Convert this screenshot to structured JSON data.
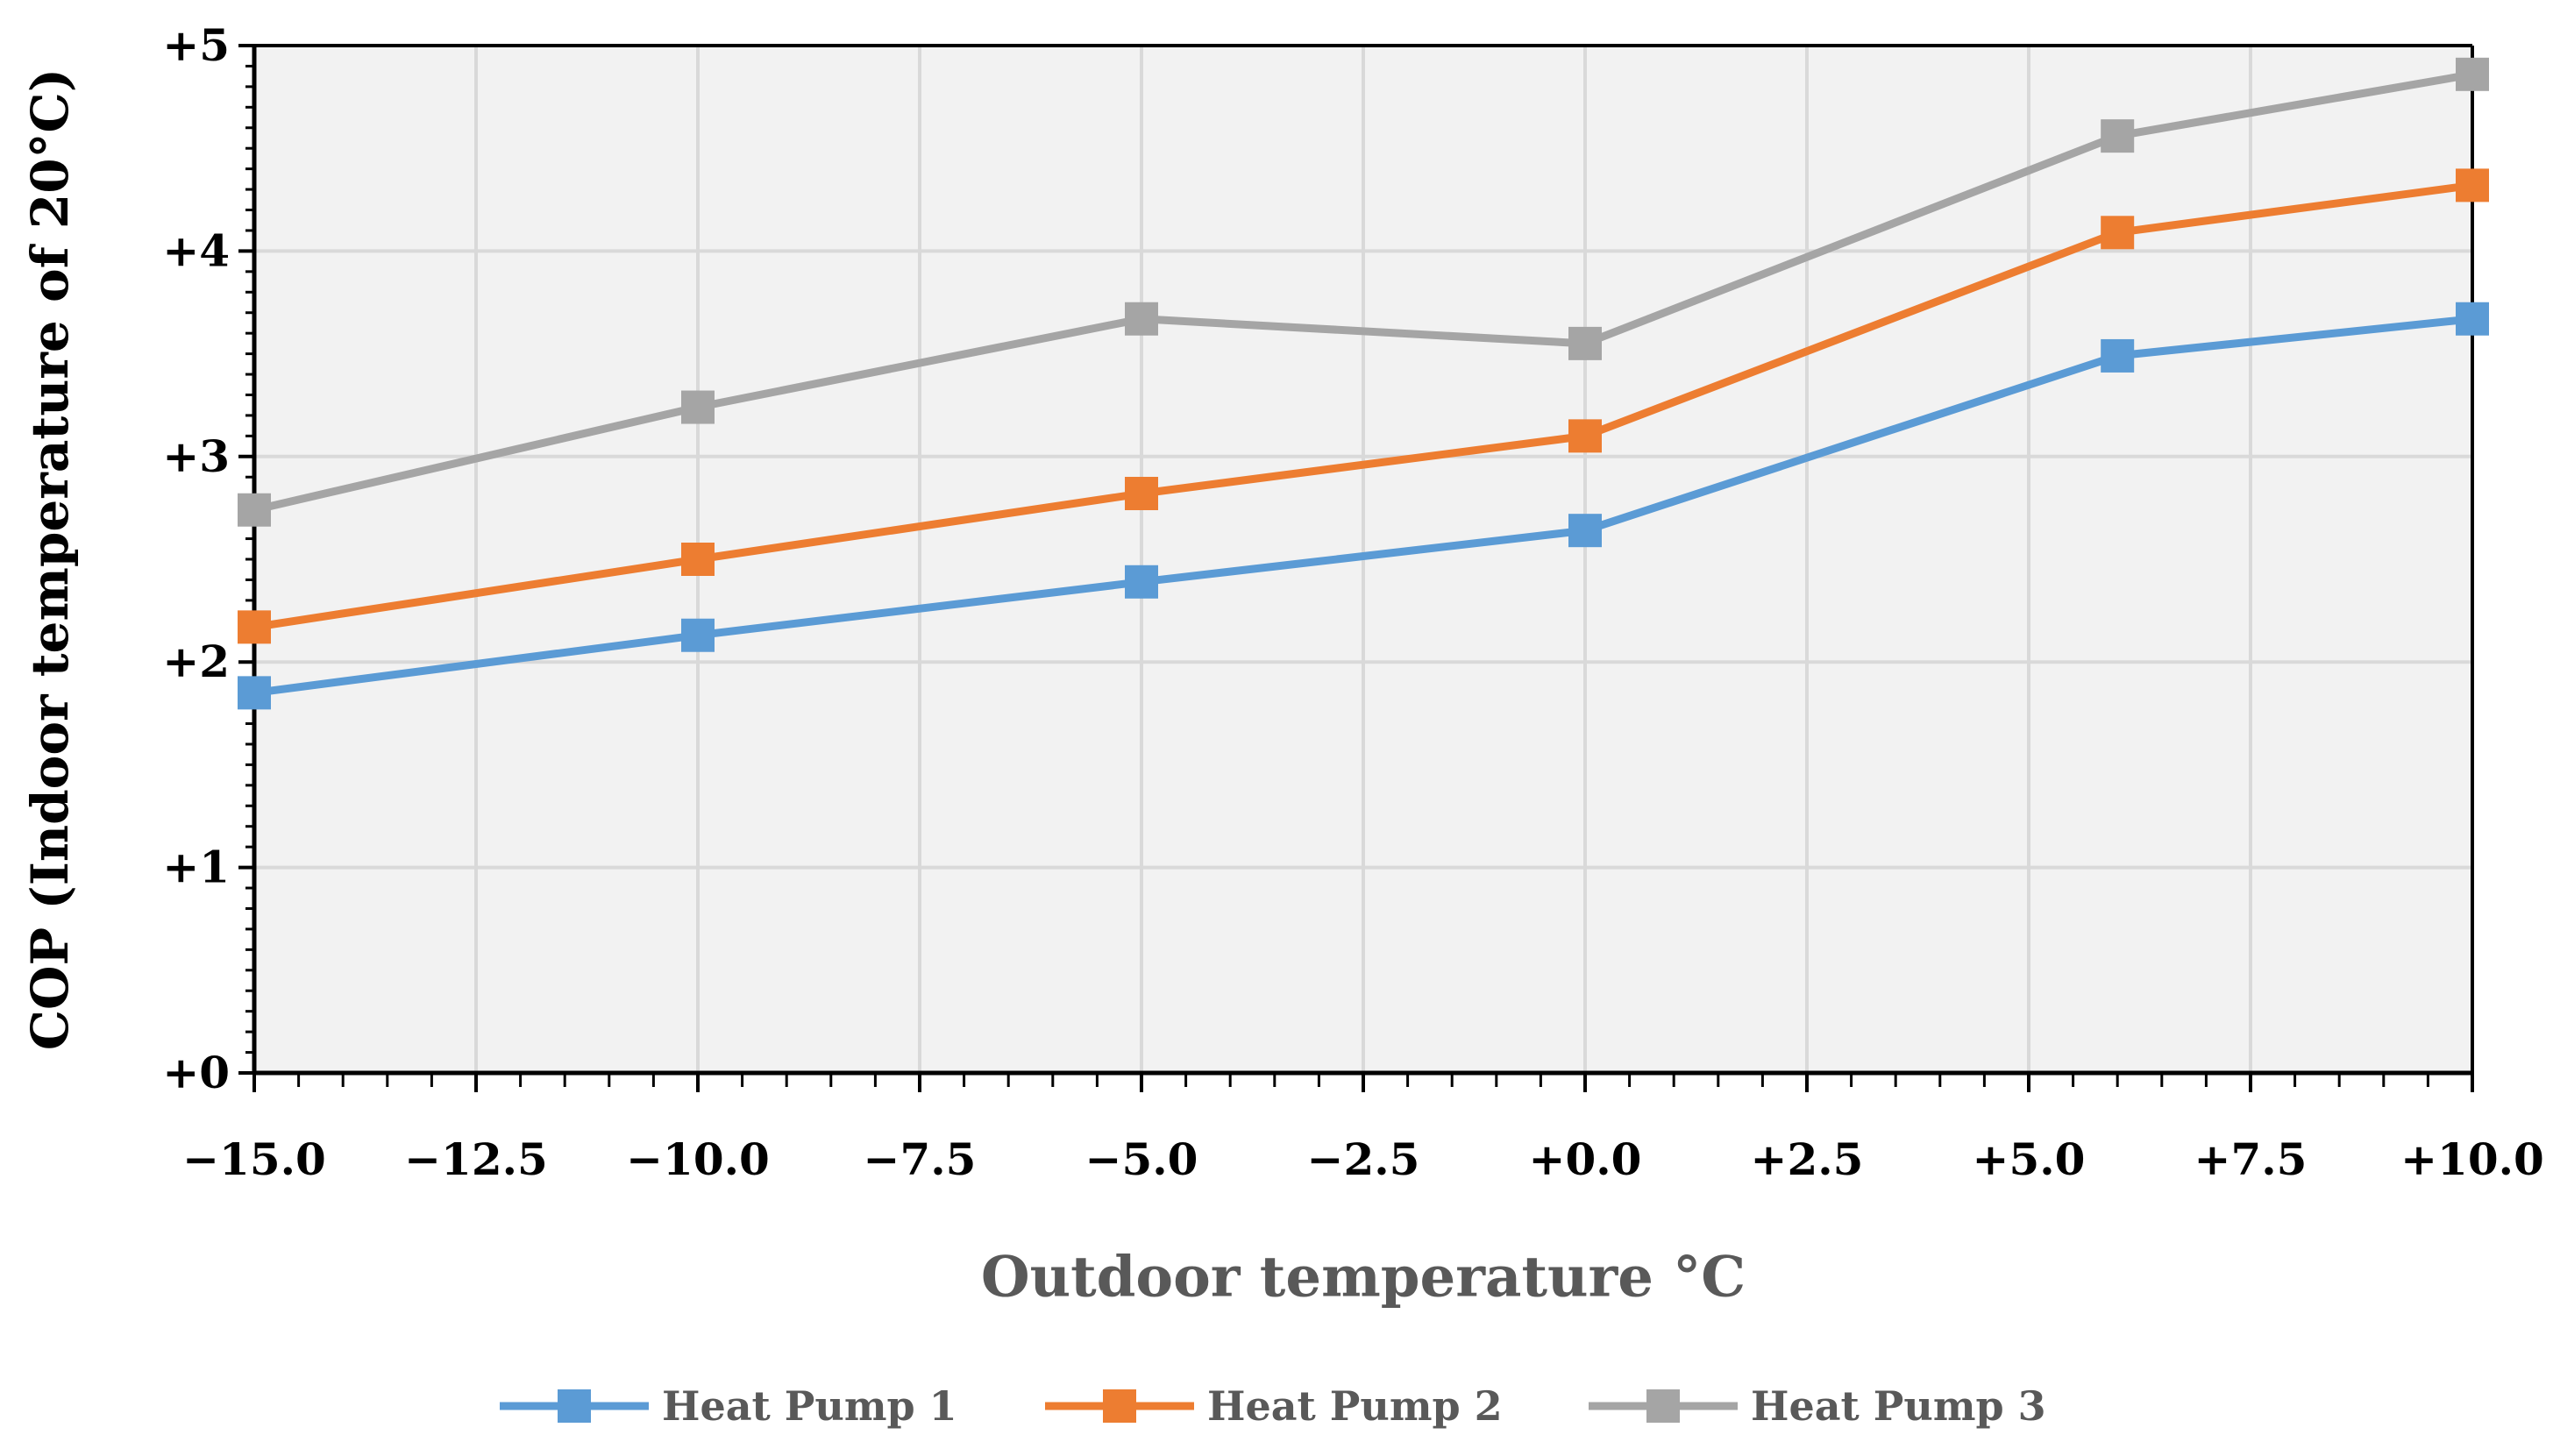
{
  "chart_data": {
    "type": "line",
    "title": "",
    "xlabel": "Outdoor temperature °C",
    "ylabel": "COP (Indoor temperature  of 20°C)",
    "xlim": [
      -15,
      10
    ],
    "ylim": [
      0,
      5
    ],
    "x_ticks": [
      -15,
      -12.5,
      -10,
      -7.5,
      -5,
      -2.5,
      0,
      2.5,
      5,
      7.5,
      10
    ],
    "x_tick_labels": [
      "−15.0",
      "−12.5",
      "−10.0",
      "−7.5",
      "−5.0",
      "−2.5",
      "+0.0",
      "+2.5",
      "+5.0",
      "+7.5",
      "+10.0"
    ],
    "y_ticks": [
      0,
      1,
      2,
      3,
      4,
      5
    ],
    "y_tick_labels": [
      "+0",
      "+1",
      "+2",
      "+3",
      "+4",
      "+5"
    ],
    "grid": true,
    "legend_position": "bottom",
    "x": [
      -15,
      -10,
      -5,
      0,
      6,
      10
    ],
    "series": [
      {
        "name": "Heat Pump 1",
        "color": "#5b9bd5",
        "values": [
          1.85,
          2.13,
          2.39,
          2.64,
          3.49,
          3.67
        ]
      },
      {
        "name": "Heat Pump 2",
        "color": "#ed7d31",
        "values": [
          2.17,
          2.5,
          2.82,
          3.1,
          4.09,
          4.32
        ]
      },
      {
        "name": "Heat Pump 3",
        "color": "#a5a5a5",
        "values": [
          2.74,
          3.24,
          3.67,
          3.55,
          4.56,
          4.86
        ]
      }
    ]
  }
}
